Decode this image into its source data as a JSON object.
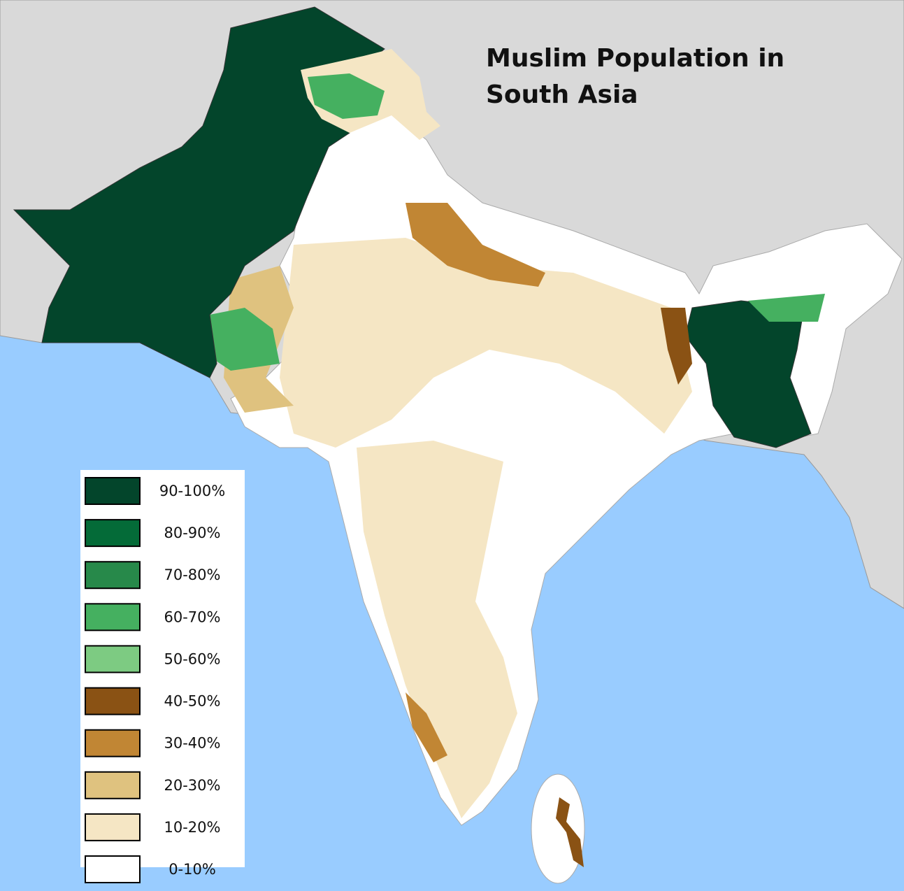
{
  "title": "Muslim Population in South Asia",
  "legend": [
    {
      "label": "90-100%",
      "color": "#03452b"
    },
    {
      "label": "80-90%",
      "color": "#046b38"
    },
    {
      "label": "70-80%",
      "color": "#27894a"
    },
    {
      "label": "60-70%",
      "color": "#45b060"
    },
    {
      "label": "50-60%",
      "color": "#7dcb82"
    },
    {
      "label": "40-50%",
      "color": "#8a5214"
    },
    {
      "label": "30-40%",
      "color": "#c18634"
    },
    {
      "label": "20-30%",
      "color": "#dfc27f"
    },
    {
      "label": "10-20%",
      "color": "#f5e6c4"
    },
    {
      "label": "0-10%",
      "color": "#ffffff"
    }
  ]
}
